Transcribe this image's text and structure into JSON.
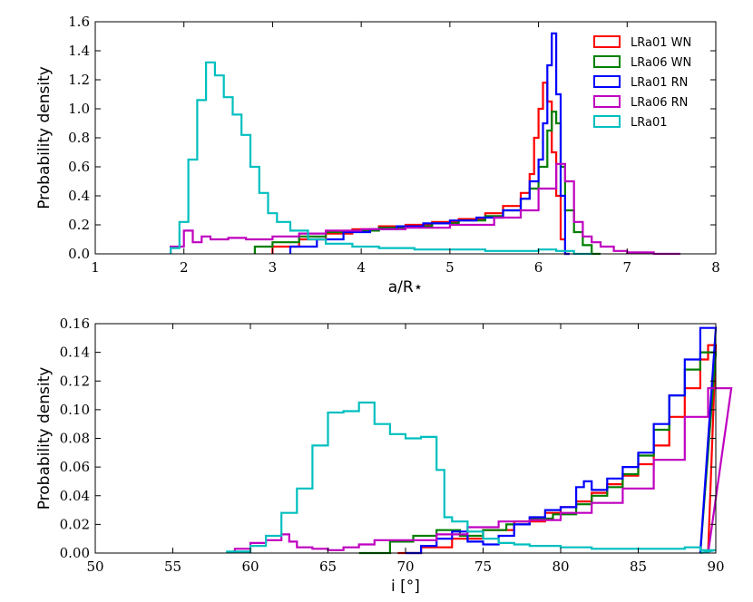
{
  "chart_data": [
    {
      "type": "histogram-step",
      "xlabel": "a/R⋆",
      "ylabel": "Probability density",
      "xlim": [
        1,
        8
      ],
      "ylim": [
        0,
        1.6
      ],
      "xticks": [
        1,
        2,
        3,
        4,
        5,
        6,
        7,
        8
      ],
      "yticks": [
        0.0,
        0.2,
        0.4,
        0.6,
        0.8,
        1.0,
        1.2,
        1.4,
        1.6
      ],
      "ytick_decimals": 1,
      "legend_position": "top-right",
      "series": [
        {
          "name": "LRa01 WN",
          "color": "#ff0000",
          "x": [
            3.0,
            3.3,
            3.6,
            3.9,
            4.2,
            4.5,
            4.8,
            5.1,
            5.4,
            5.6,
            5.8,
            5.9,
            5.95,
            6.0,
            6.05,
            6.1,
            6.15,
            6.2,
            6.25,
            6.3
          ],
          "y": [
            0.05,
            0.1,
            0.14,
            0.17,
            0.19,
            0.2,
            0.22,
            0.24,
            0.28,
            0.33,
            0.42,
            0.55,
            0.8,
            1.0,
            1.18,
            1.05,
            0.7,
            0.4,
            0.1,
            0.0
          ]
        },
        {
          "name": "LRa06 WN",
          "color": "#007f00",
          "x": [
            2.8,
            3.0,
            3.3,
            3.6,
            3.9,
            4.2,
            4.5,
            4.8,
            5.1,
            5.4,
            5.6,
            5.8,
            5.9,
            6.0,
            6.1,
            6.15,
            6.2,
            6.25,
            6.3,
            6.4,
            6.5,
            6.6
          ],
          "y": [
            0.05,
            0.08,
            0.12,
            0.15,
            0.16,
            0.18,
            0.19,
            0.21,
            0.23,
            0.26,
            0.3,
            0.38,
            0.45,
            0.6,
            0.85,
            0.98,
            0.9,
            0.6,
            0.3,
            0.15,
            0.06,
            0.0
          ]
        },
        {
          "name": "LRa01 RN",
          "color": "#0000ff",
          "x": [
            3.2,
            3.5,
            3.8,
            4.1,
            4.4,
            4.7,
            5.0,
            5.3,
            5.6,
            5.8,
            5.9,
            6.0,
            6.05,
            6.1,
            6.15,
            6.2,
            6.25,
            6.3
          ],
          "y": [
            0.05,
            0.1,
            0.15,
            0.17,
            0.19,
            0.21,
            0.23,
            0.25,
            0.3,
            0.38,
            0.5,
            0.65,
            0.9,
            1.3,
            1.52,
            1.1,
            0.4,
            0.0
          ]
        },
        {
          "name": "LRa06 RN",
          "color": "#bf00bf",
          "x": [
            1.85,
            2.0,
            2.1,
            2.2,
            2.3,
            2.5,
            2.7,
            3.0,
            3.3,
            3.6,
            4.0,
            4.5,
            5.0,
            5.5,
            5.8,
            6.0,
            6.2,
            6.3,
            6.4,
            6.5,
            6.6,
            6.7,
            6.85,
            7.0,
            7.3
          ],
          "y": [
            0.05,
            0.16,
            0.08,
            0.12,
            0.1,
            0.11,
            0.1,
            0.12,
            0.14,
            0.16,
            0.17,
            0.18,
            0.2,
            0.25,
            0.3,
            0.45,
            0.62,
            0.5,
            0.22,
            0.12,
            0.08,
            0.05,
            0.02,
            0.01,
            0.0
          ]
        },
        {
          "name": "LRa01",
          "color": "#00bfbf",
          "x": [
            1.85,
            1.95,
            2.05,
            2.15,
            2.25,
            2.35,
            2.45,
            2.55,
            2.65,
            2.75,
            2.85,
            2.95,
            3.05,
            3.2,
            3.4,
            3.6,
            3.9,
            4.2,
            4.6,
            5.0,
            5.4,
            5.8,
            6.0,
            6.2,
            6.4
          ],
          "y": [
            0.04,
            0.22,
            0.65,
            1.06,
            1.32,
            1.23,
            1.08,
            0.96,
            0.82,
            0.6,
            0.42,
            0.28,
            0.22,
            0.16,
            0.1,
            0.07,
            0.05,
            0.04,
            0.03,
            0.03,
            0.02,
            0.02,
            0.03,
            0.02,
            0.0
          ]
        }
      ]
    },
    {
      "type": "histogram-step",
      "xlabel": "i [°]",
      "ylabel": "Probability density",
      "xlim": [
        50,
        90
      ],
      "ylim": [
        0,
        0.16
      ],
      "xticks": [
        50,
        55,
        60,
        65,
        70,
        75,
        80,
        85,
        90
      ],
      "yticks": [
        0.0,
        0.02,
        0.04,
        0.06,
        0.08,
        0.1,
        0.12,
        0.14,
        0.16
      ],
      "ytick_decimals": 2,
      "series": [
        {
          "name": "LRa01 WN",
          "color": "#ff0000",
          "x": [
            69.5,
            71,
            73,
            75,
            77,
            79,
            80,
            81,
            82,
            83,
            84,
            85,
            86,
            87,
            88,
            89,
            89.5
          ],
          "y": [
            0.0,
            0.004,
            0.01,
            0.016,
            0.022,
            0.028,
            0.032,
            0.036,
            0.042,
            0.048,
            0.054,
            0.062,
            0.075,
            0.095,
            0.115,
            0.135,
            0.145
          ]
        },
        {
          "name": "LRa06 WN",
          "color": "#007f00",
          "x": [
            67,
            69,
            70.5,
            72,
            73.5,
            75,
            76.5,
            78,
            79.5,
            81,
            82,
            83,
            84,
            85,
            86,
            87,
            88,
            89
          ],
          "y": [
            0.0,
            0.008,
            0.012,
            0.016,
            0.012,
            0.016,
            0.02,
            0.024,
            0.027,
            0.034,
            0.04,
            0.046,
            0.055,
            0.068,
            0.086,
            0.11,
            0.128,
            0.14
          ]
        },
        {
          "name": "LRa01 RN",
          "color": "#0000ff",
          "x": [
            70,
            71,
            72,
            73,
            74,
            75,
            76,
            77,
            78,
            79,
            80,
            81,
            81.5,
            82,
            83,
            84,
            85,
            86,
            87,
            88,
            89
          ],
          "y": [
            0.0,
            0.005,
            0.01,
            0.015,
            0.008,
            0.006,
            0.012,
            0.02,
            0.025,
            0.03,
            0.032,
            0.046,
            0.05,
            0.044,
            0.052,
            0.06,
            0.07,
            0.09,
            0.11,
            0.135,
            0.157
          ]
        },
        {
          "name": "LRa06 RN",
          "color": "#bf00bf",
          "x": [
            59,
            60,
            61,
            62,
            62.5,
            63,
            64,
            65,
            66,
            67,
            68,
            70,
            72,
            74,
            76,
            78,
            80,
            82,
            84,
            86,
            88,
            89.5
          ],
          "y": [
            0.003,
            0.007,
            0.009,
            0.013,
            0.008,
            0.004,
            0.003,
            0.002,
            0.004,
            0.006,
            0.009,
            0.009,
            0.013,
            0.018,
            0.022,
            0.023,
            0.028,
            0.035,
            0.045,
            0.065,
            0.095,
            0.115
          ]
        },
        {
          "name": "LRa01",
          "color": "#00bfbf",
          "x": [
            58.5,
            60,
            61,
            62,
            63,
            64,
            65,
            66,
            67,
            68,
            69,
            70,
            71,
            72,
            72.5,
            73,
            74,
            75,
            76,
            77,
            78,
            80,
            82,
            85,
            88,
            89
          ],
          "y": [
            0.001,
            0.005,
            0.012,
            0.028,
            0.045,
            0.075,
            0.098,
            0.099,
            0.105,
            0.09,
            0.083,
            0.08,
            0.081,
            0.058,
            0.025,
            0.022,
            0.015,
            0.01,
            0.007,
            0.006,
            0.005,
            0.004,
            0.003,
            0.003,
            0.004,
            0.002
          ]
        }
      ]
    }
  ]
}
